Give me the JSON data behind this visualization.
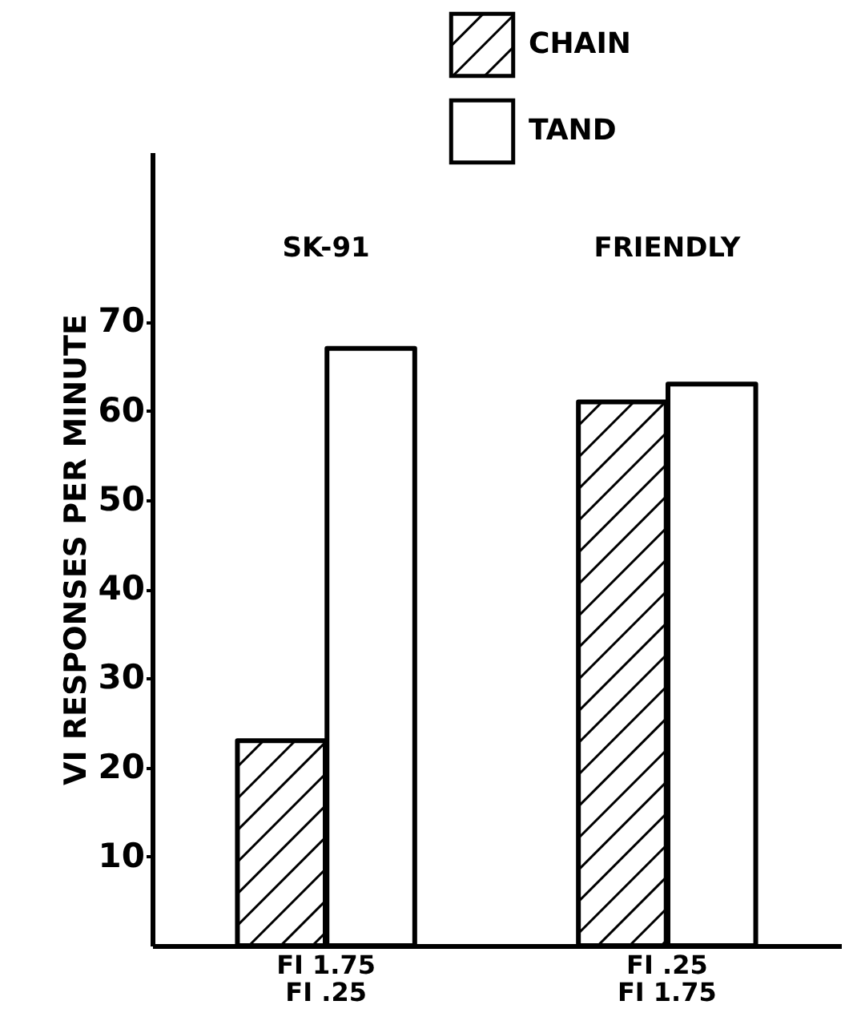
{
  "chart_data": {
    "type": "bar",
    "ylabel": "VI RESPONSES PER MINUTE",
    "categories": [
      "FI 1.75\nFI .25",
      "FI .25\nFI 1.75"
    ],
    "series": [
      {
        "name": "CHAIN",
        "color": "#000000",
        "values": [
          23,
          61
        ]
      },
      {
        "name": "TAND",
        "color": "#ffffff",
        "values": [
          67,
          63
        ]
      }
    ],
    "ylim": [
      0,
      89
    ],
    "yticks": [
      10,
      20,
      30,
      40,
      50,
      60,
      70
    ],
    "grid": false,
    "legend": "top",
    "annotations": [
      "SK-91",
      "FRIENDLY"
    ]
  }
}
